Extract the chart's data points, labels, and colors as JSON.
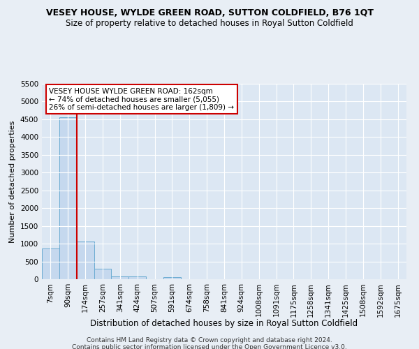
{
  "title": "VESEY HOUSE, WYLDE GREEN ROAD, SUTTON COLDFIELD, B76 1QT",
  "subtitle": "Size of property relative to detached houses in Royal Sutton Coldfield",
  "xlabel": "Distribution of detached houses by size in Royal Sutton Coldfield",
  "ylabel": "Number of detached properties",
  "footnote1": "Contains HM Land Registry data © Crown copyright and database right 2024.",
  "footnote2": "Contains public sector information licensed under the Open Government Licence v3.0.",
  "bar_labels": [
    "7sqm",
    "90sqm",
    "174sqm",
    "257sqm",
    "341sqm",
    "424sqm",
    "507sqm",
    "591sqm",
    "674sqm",
    "758sqm",
    "841sqm",
    "924sqm",
    "1008sqm",
    "1091sqm",
    "1175sqm",
    "1258sqm",
    "1341sqm",
    "1425sqm",
    "1508sqm",
    "1592sqm",
    "1675sqm"
  ],
  "bar_values": [
    870,
    4560,
    1060,
    290,
    75,
    75,
    0,
    55,
    0,
    0,
    0,
    0,
    0,
    0,
    0,
    0,
    0,
    0,
    0,
    0,
    0
  ],
  "bar_color": "#c5d8ee",
  "bar_edge_color": "#6aabd2",
  "vline_color": "#cc0000",
  "annotation_text": "VESEY HOUSE WYLDE GREEN ROAD: 162sqm\n← 74% of detached houses are smaller (5,055)\n26% of semi-detached houses are larger (1,809) →",
  "annotation_box_color": "#ffffff",
  "annotation_box_edge": "#cc0000",
  "ylim": [
    0,
    5500
  ],
  "yticks": [
    0,
    500,
    1000,
    1500,
    2000,
    2500,
    3000,
    3500,
    4000,
    4500,
    5000,
    5500
  ],
  "bg_color": "#e8eef5",
  "plot_bg_color": "#dce7f3",
  "title_fontsize": 9.0,
  "subtitle_fontsize": 8.5,
  "xlabel_fontsize": 8.5,
  "ylabel_fontsize": 8.0,
  "tick_fontsize": 7.5,
  "footnote_fontsize": 6.5
}
